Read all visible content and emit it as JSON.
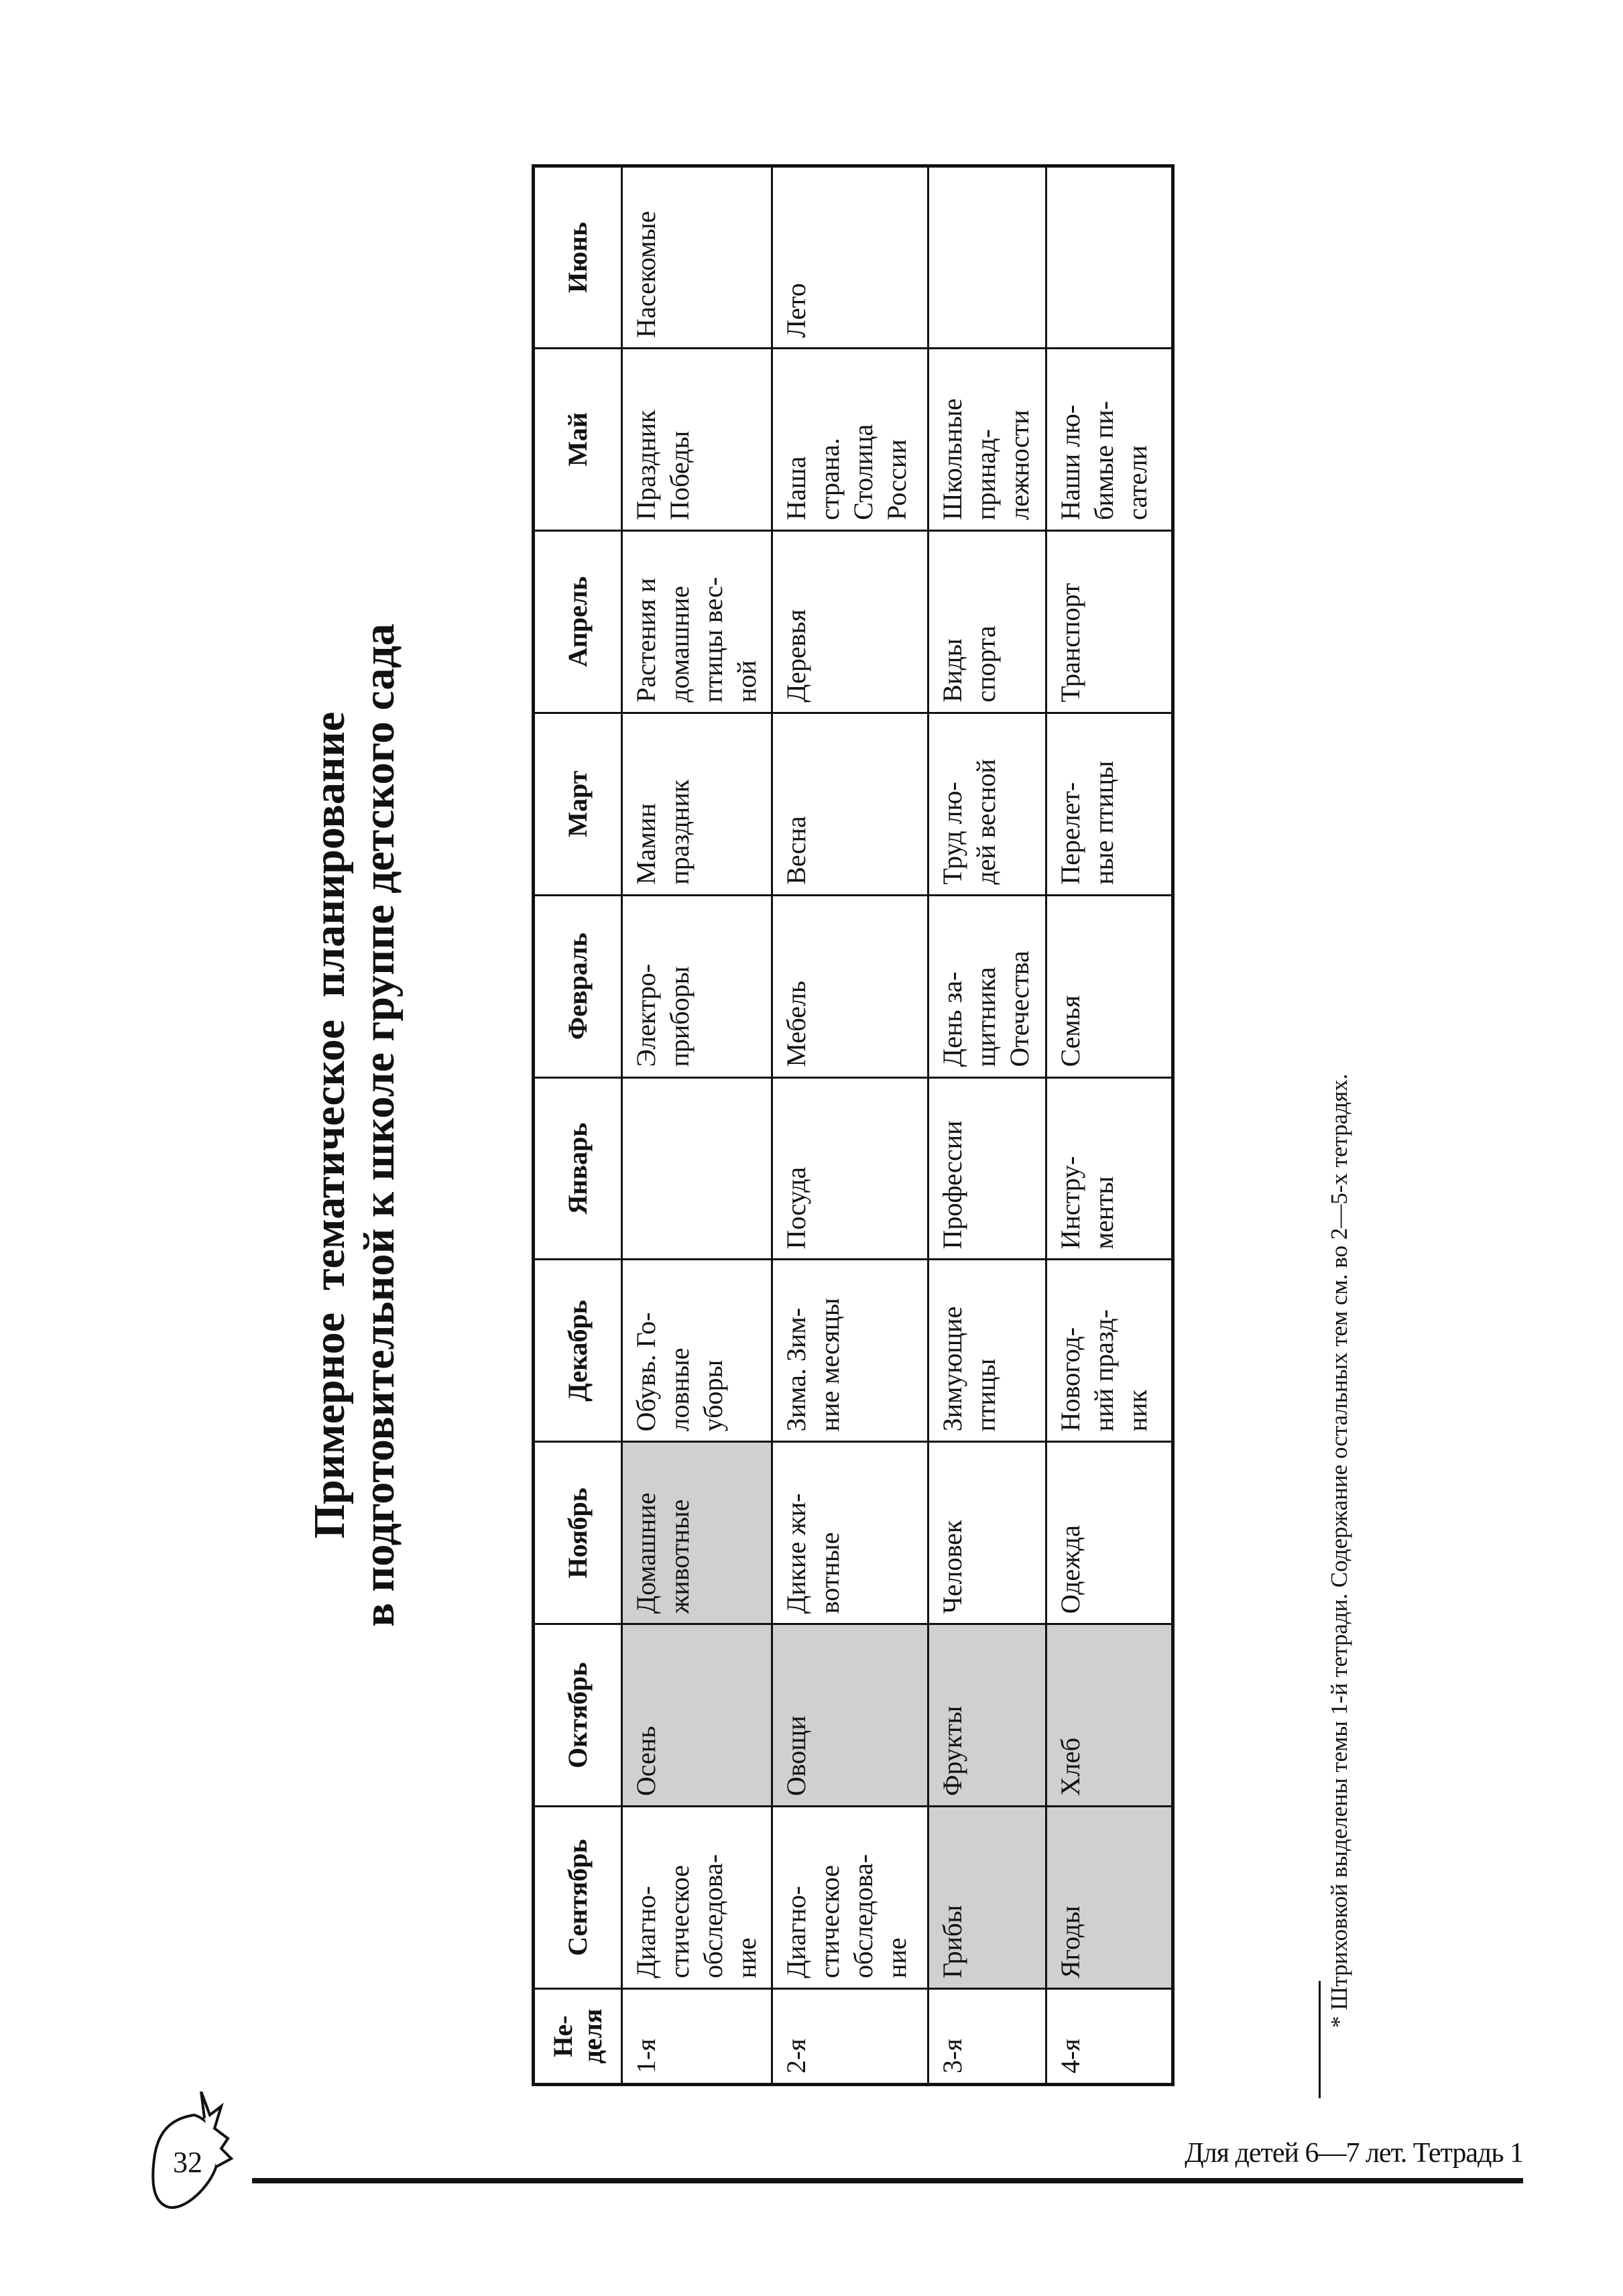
{
  "title": {
    "line1": "Примерное  тематическое  планирование",
    "line2": "в подготовительной к школе группе детского сада"
  },
  "table": {
    "headers": [
      "Не-\nделя",
      "Сентябрь",
      "Октябрь",
      "Ноябрь",
      "Декабрь",
      "Январь",
      "Февраль",
      "Март",
      "Апрель",
      "Май",
      "Июнь"
    ],
    "rows": [
      {
        "week": "1-я",
        "cells": [
          {
            "text": "Диагно-\nстическое\nобследова-\nние",
            "shaded": false
          },
          {
            "text": "Осень",
            "shaded": true
          },
          {
            "text": "Домашние\nживотные",
            "shaded": true
          },
          {
            "text": "Обувь. Го-\nловные\nуборы",
            "shaded": false
          },
          {
            "text": "",
            "shaded": false
          },
          {
            "text": "Электро-\nприборы",
            "shaded": false
          },
          {
            "text": "Мамин\nпраздник",
            "shaded": false
          },
          {
            "text": "Растения и\nдомашние\nптицы вес-\nной",
            "shaded": false
          },
          {
            "text": "Праздник\nПобеды",
            "shaded": false
          },
          {
            "text": "Насекомые",
            "shaded": false
          }
        ]
      },
      {
        "week": "2-я",
        "cells": [
          {
            "text": "Диагно-\nстическое\nобследова-\nние",
            "shaded": false
          },
          {
            "text": "Овощи",
            "shaded": true
          },
          {
            "text": "Дикие жи-\nвотные",
            "shaded": false
          },
          {
            "text": "Зима. Зим-\nние месяцы",
            "shaded": false
          },
          {
            "text": "Посуда",
            "shaded": false
          },
          {
            "text": "Мебель",
            "shaded": false
          },
          {
            "text": "Весна",
            "shaded": false
          },
          {
            "text": "Деревья",
            "shaded": false
          },
          {
            "text": "Наша\nстрана.\nСтолица\nРоссии",
            "shaded": false
          },
          {
            "text": "Лето",
            "shaded": false
          }
        ]
      },
      {
        "week": "3-я",
        "cells": [
          {
            "text": "Грибы",
            "shaded": true
          },
          {
            "text": "Фрукты",
            "shaded": true
          },
          {
            "text": "Человек",
            "shaded": false
          },
          {
            "text": "Зимующие\nптицы",
            "shaded": false
          },
          {
            "text": "Профессии",
            "shaded": false
          },
          {
            "text": "День за-\nщитника\nОтечества",
            "shaded": false
          },
          {
            "text": "Труд лю-\nдей весной",
            "shaded": false
          },
          {
            "text": "Виды\nспорта",
            "shaded": false
          },
          {
            "text": "Школьные\nпринад-\nлежности",
            "shaded": false
          },
          {
            "text": "",
            "shaded": false
          }
        ]
      },
      {
        "week": "4-я",
        "cells": [
          {
            "text": "Ягоды",
            "shaded": true
          },
          {
            "text": "Хлеб",
            "shaded": true
          },
          {
            "text": "Одежда",
            "shaded": false
          },
          {
            "text": "Новогод-\nний празд-\nник",
            "shaded": false
          },
          {
            "text": "Инстру-\nменты",
            "shaded": false
          },
          {
            "text": "Семья",
            "shaded": false
          },
          {
            "text": "Перелет-\nные птицы",
            "shaded": false
          },
          {
            "text": "Транспорт",
            "shaded": false
          },
          {
            "text": "Наши лю-\nбимые пи-\nсатели",
            "shaded": false
          },
          {
            "text": "",
            "shaded": false
          }
        ]
      }
    ]
  },
  "footnote": "* Штриховкой выделены темы 1-й тетради. Содержание остальных тем см. во 2—5-х тетрадях.",
  "footer": {
    "page_number": "32",
    "book_title": "Для детей 6—7 лет. Тетрадь 1"
  },
  "colors": {
    "shaded_cell": "#d0d0d0",
    "ink": "#111111"
  },
  "icons": {
    "page_badge": "strawberry-icon"
  }
}
